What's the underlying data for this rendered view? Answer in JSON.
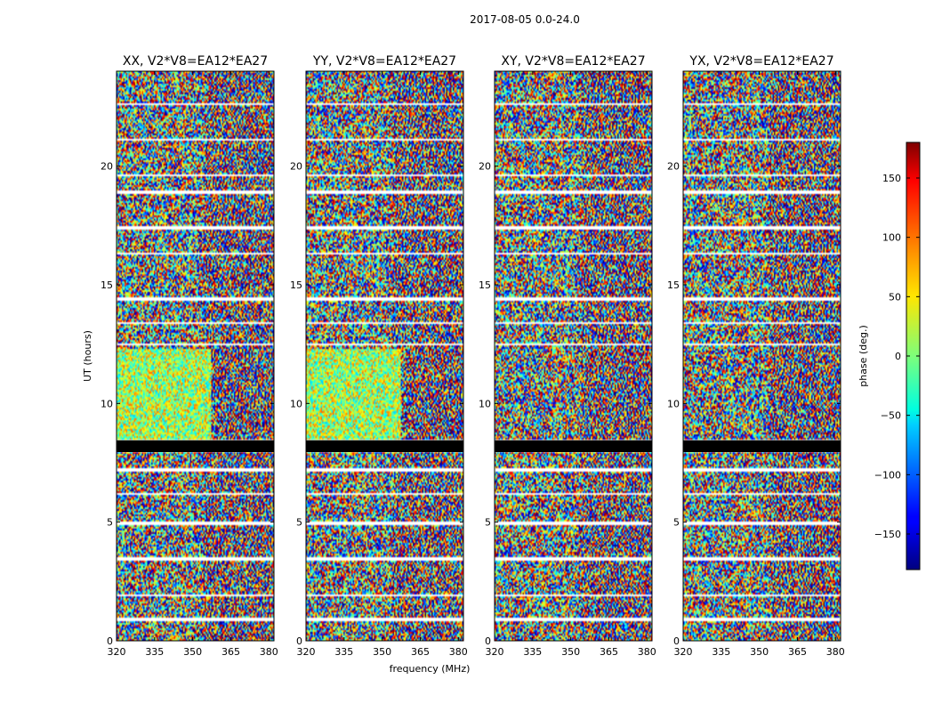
{
  "chart_data": {
    "type": "heatmap",
    "suptitle": "2017-08-05 0.0-24.0",
    "xlabel": "frequency (MHz)",
    "ylabel": "UT (hours)",
    "xlim": [
      320,
      382
    ],
    "ylim": [
      0,
      24
    ],
    "xticks": [
      320,
      335,
      350,
      365,
      380
    ],
    "yticks": [
      0,
      5,
      10,
      15,
      20
    ],
    "panels": [
      {
        "title": "XX, V2*V8=EA12*EA27",
        "polarization": "XX"
      },
      {
        "title": "YY, V2*V8=EA12*EA27",
        "polarization": "YY"
      },
      {
        "title": "XY, V2*V8=EA12*EA27",
        "polarization": "XY"
      },
      {
        "title": "YX, V2*V8=EA12*EA27",
        "polarization": "YX"
      }
    ],
    "colorbar": {
      "label": "phase (deg.)",
      "range": [
        -180,
        180
      ],
      "ticks": [
        150,
        100,
        50,
        0,
        -50,
        -100,
        -150
      ],
      "tick_labels": [
        "150",
        "100",
        "50",
        "0",
        "−50",
        "−100",
        "−150"
      ],
      "colormap": "jet"
    },
    "flagged_bands_hours": [
      [
        0.82,
        0.95
      ],
      [
        1.85,
        1.95
      ],
      [
        3.35,
        3.5
      ],
      [
        4.9,
        5.0
      ],
      [
        6.15,
        6.25
      ],
      [
        7.15,
        7.3
      ],
      [
        7.95,
        8.45
      ],
      [
        12.45,
        12.55
      ],
      [
        13.35,
        13.45
      ],
      [
        14.35,
        14.5
      ],
      [
        16.25,
        16.35
      ],
      [
        17.35,
        17.45
      ],
      [
        18.85,
        18.95
      ],
      [
        19.55,
        19.65
      ],
      [
        21.05,
        21.15
      ],
      [
        22.55,
        22.65
      ]
    ]
  }
}
